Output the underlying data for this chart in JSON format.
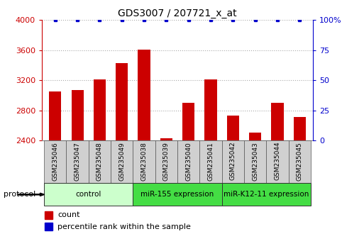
{
  "title": "GDS3007 / 207721_x_at",
  "samples": [
    "GSM235046",
    "GSM235047",
    "GSM235048",
    "GSM235049",
    "GSM235038",
    "GSM235039",
    "GSM235040",
    "GSM235041",
    "GSM235042",
    "GSM235043",
    "GSM235044",
    "GSM235045"
  ],
  "counts": [
    3050,
    3070,
    3210,
    3430,
    3610,
    2430,
    2900,
    3210,
    2730,
    2510,
    2900,
    2710
  ],
  "groups": [
    {
      "label": "control",
      "start": 0,
      "end": 4,
      "color": "#ccffcc"
    },
    {
      "label": "miR-155 expression",
      "start": 4,
      "end": 8,
      "color": "#44dd44"
    },
    {
      "label": "miR-K12-11 expression",
      "start": 8,
      "end": 12,
      "color": "#44dd44"
    }
  ],
  "bar_color": "#cc0000",
  "dot_color": "#0000cc",
  "ylim_left": [
    2400,
    4000
  ],
  "ylim_right": [
    0,
    100
  ],
  "yticks_left": [
    2400,
    2800,
    3200,
    3600,
    4000
  ],
  "yticks_right": [
    0,
    25,
    50,
    75,
    100
  ],
  "bg_color": "#ffffff",
  "grid_color": "#aaaaaa",
  "label_color_left": "#cc0000",
  "label_color_right": "#0000cc",
  "protocol_label": "protocol",
  "legend_count": "count",
  "legend_percentile": "percentile rank within the sample",
  "sample_box_color": "#d0d0d0"
}
